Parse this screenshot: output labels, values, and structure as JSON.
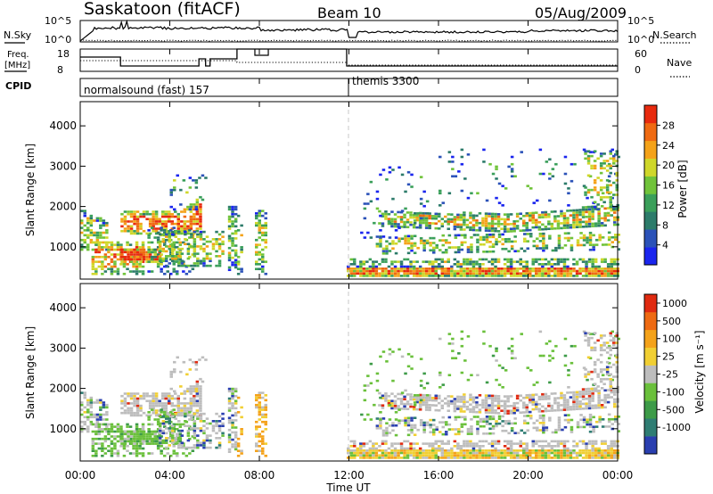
{
  "header": {
    "radar": "Saskatoon (fitACF)",
    "beam": "Beam 10",
    "date": "05/Aug/2009"
  },
  "top_panels": {
    "nsky": {
      "label": "N.Sky",
      "ticks": [
        "10^5",
        "10^0"
      ],
      "right_label": "N.Search",
      "right_ticks": [
        "10^5",
        "10^0"
      ]
    },
    "freq": {
      "label_line1": "Freq.",
      "label_line2": "[MHz]",
      "ticks": [
        "18",
        "8"
      ],
      "right_label": "Nave",
      "right_ticks": [
        "60",
        "0"
      ]
    },
    "cpid": {
      "label": "CPID",
      "modes": [
        {
          "name": "normalsound (fast) 157",
          "start_hour": 0
        },
        {
          "name": "themis 3300",
          "start_hour": 12
        }
      ]
    }
  },
  "chart_data": [
    {
      "type": "heatmap",
      "name": "power-panel",
      "ylabel": "Slant Range [km]",
      "yticks": [
        "1000",
        "2000",
        "3000",
        "4000"
      ],
      "ylim": [
        200,
        4600
      ],
      "xlim": [
        0,
        24
      ],
      "colorbar": {
        "label": "Power [dB]",
        "ticks": [
          "4",
          "8",
          "12",
          "16",
          "20",
          "24",
          "28"
        ],
        "range": [
          0,
          32
        ],
        "colors": [
          "#1a25ee",
          "#2b52b8",
          "#2c7b6a",
          "#3a9f5a",
          "#70c33a",
          "#cfd72a",
          "#f4a219",
          "#ef6a12",
          "#e82a0e"
        ]
      }
    },
    {
      "type": "heatmap",
      "name": "velocity-panel",
      "ylabel": "Slant Range [km]",
      "yticks": [
        "1000",
        "2000",
        "3000",
        "4000"
      ],
      "ylim": [
        200,
        4600
      ],
      "xlim": [
        0,
        24
      ],
      "colorbar": {
        "label": "Velocity [m s⁻¹]",
        "ticks": [
          "1000",
          "500",
          "100",
          "25",
          "-25",
          "-100",
          "-500",
          "-1000"
        ],
        "colors": [
          "#2a3fb0",
          "#2f7d73",
          "#3d9b48",
          "#6ac03b",
          "#bdbdbd",
          "#f1cf33",
          "#f4a21a",
          "#ee6a12",
          "#e02a10"
        ]
      }
    }
  ],
  "xaxis": {
    "label": "Time UT",
    "ticks": [
      "00:00",
      "04:00",
      "08:00",
      "12:00",
      "16:00",
      "20:00",
      "00:00"
    ]
  }
}
